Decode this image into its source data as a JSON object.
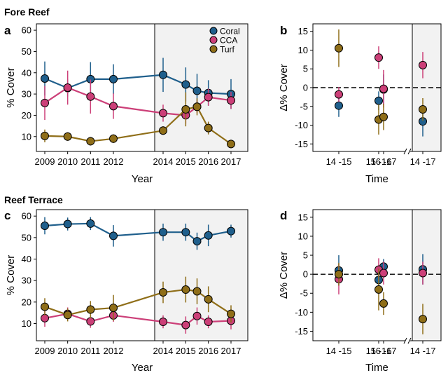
{
  "sections": {
    "top_title": "Fore Reef",
    "bottom_title": "Reef Terrace"
  },
  "colors": {
    "coral": "#1f5f8c",
    "cca": "#cc3f78",
    "turf": "#8f6e18",
    "shade": "#f2f2f2"
  },
  "legend": {
    "labels": [
      "Coral",
      "CCA",
      "Turf"
    ]
  },
  "chart_data": [
    {
      "panel": "a",
      "type": "line",
      "title": "",
      "xlabel": "Year",
      "ylabel": "% Cover",
      "xlim": [
        2008.8,
        2017.3
      ],
      "ylim": [
        3,
        63
      ],
      "xticks": [
        2009,
        2010,
        2011,
        2012,
        2014,
        2015,
        2016,
        2017
      ],
      "yticks": [
        10,
        20,
        30,
        40,
        50,
        60
      ],
      "axis_break_x": [
        2013,
        2014
      ],
      "shade_from_x": 2014,
      "legend": "top-right",
      "series": [
        {
          "name": "Coral",
          "x": [
            2009,
            2010,
            2011,
            2012,
            2014,
            2015,
            2015.5,
            2016,
            2017
          ],
          "y": [
            37.3,
            32.8,
            37.0,
            37.0,
            39.0,
            34.5,
            31.5,
            30.5,
            30.0
          ],
          "err": [
            8,
            4,
            8,
            7,
            8,
            8,
            8,
            6,
            7
          ]
        },
        {
          "name": "CCA",
          "x": [
            2009,
            2010,
            2011,
            2012,
            2014,
            2015,
            2015.5,
            2016,
            2017
          ],
          "y": [
            25.8,
            33.0,
            28.8,
            24.3,
            21.0,
            20.0,
            24.0,
            28.5,
            27.0
          ],
          "err": [
            8,
            8,
            8,
            6,
            4,
            4,
            3,
            4,
            4
          ]
        },
        {
          "name": "Turf",
          "x": [
            2009,
            2010,
            2011,
            2012,
            2014,
            2015,
            2015.5,
            2016,
            2017
          ],
          "y": [
            10.3,
            10.0,
            7.8,
            9.0,
            12.8,
            22.8,
            24.0,
            14.0,
            6.5
          ],
          "err": [
            3,
            2,
            2,
            2,
            2,
            8,
            4,
            3,
            2
          ]
        }
      ]
    },
    {
      "panel": "b",
      "type": "scatter",
      "title": "",
      "xlabel": "Time",
      "ylabel": "Δ% Cover",
      "categories": [
        "14 -15",
        "15 -16",
        "16 -17",
        "14 -17"
      ],
      "ylim": [
        -17,
        17
      ],
      "yticks": [
        -15,
        -10,
        -5,
        0,
        5,
        10,
        15
      ],
      "reference_line_y": 0,
      "shaded_category": "14 -17",
      "series": [
        {
          "name": "Coral",
          "values": [
            -4.8,
            -3.5,
            -0.5,
            -9.0
          ],
          "err": [
            3,
            2.5,
            4,
            4
          ]
        },
        {
          "name": "CCA",
          "values": [
            -1.8,
            8.0,
            -0.3,
            6.0
          ],
          "err": [
            2,
            3,
            5,
            3.5
          ]
        },
        {
          "name": "Turf",
          "values": [
            10.5,
            -8.5,
            -7.8,
            -5.8
          ],
          "err": [
            5,
            4,
            3.5,
            3
          ]
        }
      ]
    },
    {
      "panel": "c",
      "type": "line",
      "title": "",
      "xlabel": "Year",
      "ylabel": "% Cover",
      "xlim": [
        2008.8,
        2017.3
      ],
      "ylim": [
        2,
        63
      ],
      "xticks": [
        2009,
        2010,
        2011,
        2012,
        2014,
        2015,
        2016,
        2017
      ],
      "yticks": [
        10,
        20,
        30,
        40,
        50,
        60
      ],
      "axis_break_x": [
        2013,
        2014
      ],
      "shade_from_x": 2014,
      "series": [
        {
          "name": "Coral",
          "x": [
            2009,
            2010,
            2011,
            2012,
            2014,
            2015,
            2015.5,
            2016,
            2017
          ],
          "y": [
            55.5,
            56.3,
            56.5,
            50.8,
            52.5,
            52.5,
            48.3,
            51.0,
            53.0
          ],
          "err": [
            4,
            3,
            3,
            5,
            4,
            4,
            4,
            5,
            3
          ]
        },
        {
          "name": "CCA",
          "x": [
            2009,
            2010,
            2011,
            2012,
            2014,
            2015,
            2015.5,
            2016,
            2017
          ],
          "y": [
            12.5,
            14.5,
            11.0,
            13.8,
            10.8,
            9.3,
            13.5,
            10.8,
            11.3
          ],
          "err": [
            4,
            3,
            3,
            3,
            3,
            4,
            4,
            3,
            4
          ]
        },
        {
          "name": "Turf",
          "x": [
            2009,
            2010,
            2011,
            2012,
            2014,
            2015,
            2015.5,
            2016,
            2017
          ],
          "y": [
            17.8,
            14.0,
            16.5,
            17.3,
            24.5,
            25.8,
            25.0,
            21.3,
            14.5
          ],
          "err": [
            4,
            3,
            4,
            6,
            5,
            6,
            6,
            6,
            4
          ]
        }
      ]
    },
    {
      "panel": "d",
      "type": "scatter",
      "title": "",
      "xlabel": "Time",
      "ylabel": "Δ% Cover",
      "categories": [
        "14 -15",
        "15 -16",
        "16 -17",
        "14 -17"
      ],
      "ylim": [
        -17.5,
        17
      ],
      "yticks": [
        -15,
        -10,
        -5,
        0,
        5,
        10,
        15
      ],
      "reference_line_y": 0,
      "shaded_category": "14 -17",
      "series": [
        {
          "name": "Coral",
          "values": [
            1.0,
            -1.5,
            2.0,
            1.3
          ],
          "err": [
            4,
            2,
            2,
            4
          ]
        },
        {
          "name": "CCA",
          "values": [
            -1.3,
            1.2,
            0.3,
            0.3
          ],
          "err": [
            4,
            3,
            3,
            3
          ]
        },
        {
          "name": "Turf",
          "values": [
            0.0,
            -4.0,
            -7.7,
            -11.8
          ],
          "err": [
            3,
            5.5,
            3,
            4
          ]
        }
      ]
    }
  ]
}
